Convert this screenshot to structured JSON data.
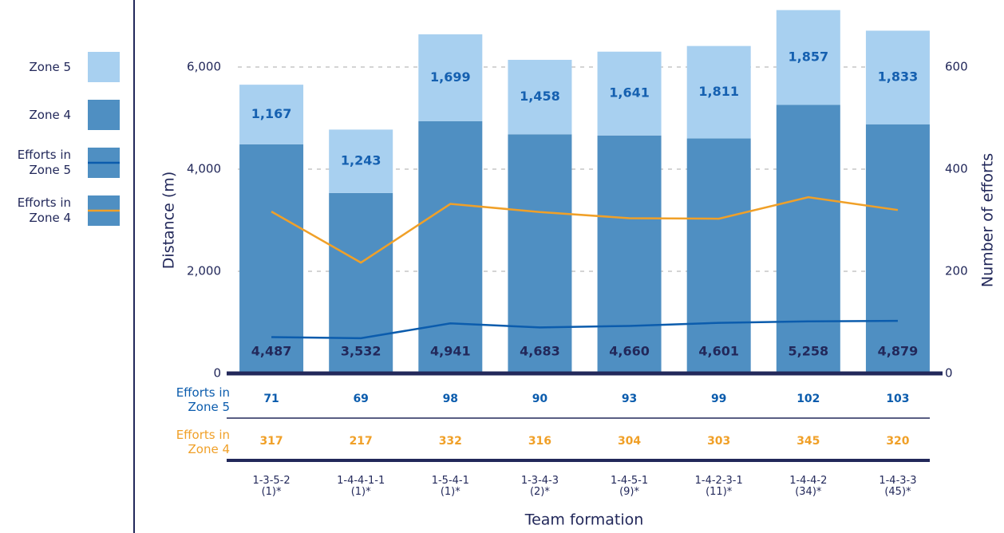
{
  "chart_data": {
    "type": "bar",
    "stacked": true,
    "categories": [
      "1-3-5-2\n(1)*",
      "1-4-4-1-1\n(1)*",
      "1-5-4-1\n(1)*",
      "1-3-4-3\n(2)*",
      "1-4-5-1\n(9)*",
      "1-4-2-3-1\n(11)*",
      "1-4-4-2\n(34)*",
      "1-4-3-3\n(45)*"
    ],
    "series": [
      {
        "name": "Zone 4",
        "color": "#4f8fc2",
        "values": [
          4487,
          3532,
          4941,
          4683,
          4660,
          4601,
          5258,
          4879
        ],
        "value_labels": [
          "4,487",
          "3,532",
          "4,941",
          "4,683",
          "4,660",
          "4,601",
          "5,258",
          "4,879"
        ]
      },
      {
        "name": "Zone 5",
        "color": "#a8d0f0",
        "values": [
          1167,
          1243,
          1699,
          1458,
          1641,
          1811,
          1857,
          1833
        ],
        "value_labels": [
          "1,167",
          "1,243",
          "1,699",
          "1,458",
          "1,641",
          "1,811",
          "1,857",
          "1,833"
        ]
      },
      {
        "name": "Efforts in Zone 5",
        "type": "line",
        "axis": "y2",
        "color": "#0b5cad",
        "values": [
          71,
          69,
          98,
          90,
          93,
          99,
          102,
          103
        ]
      },
      {
        "name": "Efforts in Zone 4",
        "type": "line",
        "axis": "y2",
        "color": "#f0a028",
        "values": [
          317,
          217,
          332,
          316,
          304,
          303,
          345,
          320
        ]
      }
    ],
    "ylim": [
      0,
      7000
    ],
    "yticks": [
      0,
      {
        "value": 2000,
        "label": "2,000"
      },
      {
        "value": 4000,
        "label": "4,000"
      },
      {
        "value": 6000,
        "label": "6,000"
      }
    ],
    "y2lim": [
      0,
      700
    ],
    "y2ticks": [
      0,
      200,
      400,
      600
    ],
    "y_label": "Distance (m)",
    "y2_label": "Number of efforts",
    "x_label": "Team formation",
    "grid": true
  }
}
